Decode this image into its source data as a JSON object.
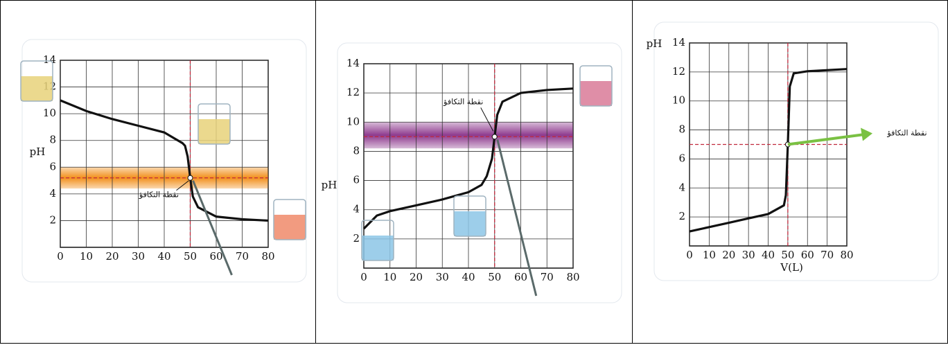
{
  "chart_data": [
    {
      "type": "line",
      "ylabel": "pH",
      "annotation": "نقطة التكافؤ",
      "x": [
        0,
        10,
        20,
        30,
        40,
        47,
        48,
        49,
        50,
        51,
        53,
        60,
        70,
        80
      ],
      "series": [
        {
          "color": "#111111",
          "values": [
            11,
            10.2,
            9.6,
            9.1,
            8.6,
            7.8,
            7.6,
            6.8,
            5.2,
            3.8,
            3,
            2.3,
            2.1,
            2
          ]
        }
      ],
      "xlim": [
        0,
        80
      ],
      "ylim": [
        0,
        14
      ],
      "xticks": [
        0,
        10,
        20,
        30,
        40,
        50,
        60,
        70,
        80
      ],
      "yticks": [
        2,
        4,
        6,
        8,
        10,
        12,
        14
      ],
      "equivalence_x": 50,
      "ref_y": 5.2,
      "band": [
        4.4,
        6
      ],
      "band_color": "#f2901c",
      "grid": true
    },
    {
      "type": "line",
      "ylabel": "pH",
      "annotation": "نقطة التكافؤ",
      "x": [
        0,
        5,
        10,
        20,
        30,
        40,
        45,
        47,
        49,
        50,
        51,
        53,
        60,
        70,
        80
      ],
      "series": [
        {
          "color": "#111111",
          "values": [
            2.7,
            3.6,
            3.9,
            4.3,
            4.7,
            5.2,
            5.7,
            6.3,
            7.5,
            9,
            10.5,
            11.4,
            12,
            12.2,
            12.3
          ]
        }
      ],
      "xlim": [
        0,
        80
      ],
      "ylim": [
        0,
        14
      ],
      "xticks": [
        0,
        10,
        20,
        30,
        40,
        50,
        60,
        70,
        80
      ],
      "yticks": [
        2,
        4,
        6,
        8,
        10,
        12,
        14
      ],
      "equivalence_x": 50,
      "ref_y": 9,
      "band": [
        8.2,
        10
      ],
      "band_color": "#8e3a8e",
      "grid": true
    },
    {
      "type": "line",
      "ylabel": "pH",
      "xlabel": "V(L)",
      "annotation": "نقطة التكافؤ",
      "x": [
        0,
        10,
        20,
        30,
        40,
        48,
        49,
        50,
        51,
        53,
        60,
        80
      ],
      "series": [
        {
          "color": "#111111",
          "values": [
            1,
            1.3,
            1.6,
            1.9,
            2.2,
            2.8,
            3.5,
            7,
            11,
            11.9,
            12.05,
            12.2
          ]
        }
      ],
      "xlim": [
        0,
        80
      ],
      "ylim": [
        0,
        14
      ],
      "xticks": [
        0,
        10,
        20,
        30,
        40,
        50,
        60,
        70,
        80
      ],
      "yticks": [
        2,
        4,
        6,
        8,
        10,
        12,
        14
      ],
      "equivalence_x": 50,
      "ref_y": 7,
      "arrow_color": "#7ac143",
      "grid": true
    }
  ]
}
